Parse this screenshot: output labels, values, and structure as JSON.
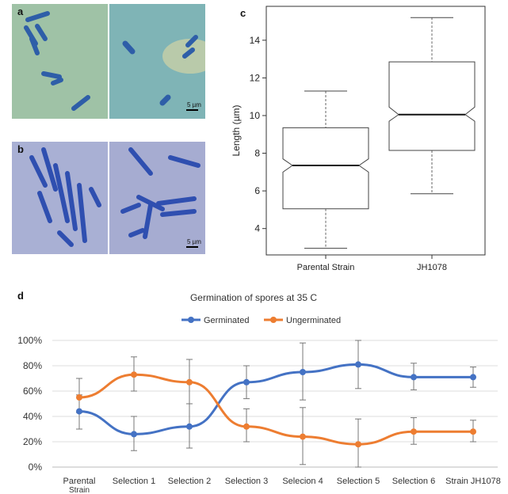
{
  "panels": {
    "a": {
      "label": "a",
      "scale_bar": "5 µm",
      "colors": {
        "background": "#9dbfa3"
      }
    },
    "b": {
      "label": "b",
      "scale_bar": "5 µm",
      "colors": {
        "background": "#a6acd1"
      }
    },
    "c": {
      "label": "c"
    },
    "d": {
      "label": "d"
    }
  },
  "chart_data": [
    {
      "id": "c",
      "type": "boxplot",
      "title": "",
      "ylabel": "Length (µm)",
      "xlabel": "",
      "ylim": [
        2.6,
        15.8
      ],
      "yticks": [
        4,
        6,
        8,
        10,
        12,
        14
      ],
      "notched": true,
      "grid": false,
      "categories": [
        "Parental Strain",
        "JH1078"
      ],
      "boxes": [
        {
          "name": "Parental Strain",
          "whisker_low": 2.95,
          "q1": 5.05,
          "notch_low": 7.0,
          "median": 7.35,
          "notch_high": 7.7,
          "q3": 9.35,
          "whisker_high": 11.3
        },
        {
          "name": "JH1078",
          "whisker_low": 5.85,
          "q1": 8.15,
          "notch_low": 9.7,
          "median": 10.05,
          "notch_high": 10.45,
          "q3": 12.85,
          "whisker_high": 15.2
        }
      ]
    },
    {
      "id": "d",
      "type": "line",
      "title": "Germination of spores at 35 C",
      "legend": "top-center",
      "grid": true,
      "ylim": [
        0,
        100
      ],
      "yticks": [
        "0%",
        "20%",
        "40%",
        "60%",
        "80%",
        "100%"
      ],
      "categories": [
        "Parental Strain",
        "Selection 1",
        "Selection 2",
        "Selection 3",
        "Selecion 4",
        "Selection 5",
        "Selection 6",
        "Strain JH1078"
      ],
      "series": [
        {
          "name": "Germinated",
          "color": "#4472c4",
          "values": [
            44,
            26,
            32,
            67,
            75,
            81,
            71,
            71
          ],
          "err_low": [
            30,
            13,
            15,
            54,
            53,
            62,
            61,
            63
          ],
          "err_high": [
            57,
            40,
            50,
            80,
            98,
            100,
            82,
            79
          ]
        },
        {
          "name": "Ungerminated",
          "color": "#ed7d31",
          "values": [
            55,
            73,
            67,
            32,
            24,
            18,
            28,
            28
          ],
          "err_low": [
            43,
            60,
            50,
            20,
            2,
            0,
            18,
            20
          ],
          "err_high": [
            70,
            87,
            85,
            46,
            47,
            38,
            39,
            37
          ]
        }
      ]
    }
  ]
}
